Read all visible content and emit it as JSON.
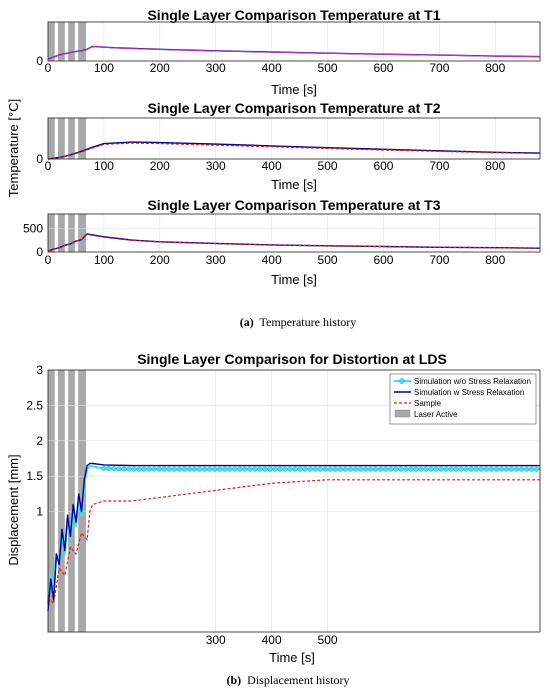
{
  "caption_a": {
    "label": "(a)",
    "text": "Temperature history"
  },
  "caption_b": {
    "label": "(b)",
    "text": "Displacement history"
  },
  "temperature_ylabel": "Temperature [°C]",
  "colors": {
    "laser": "#a9a9a9",
    "wo_relax": "#40e0f0",
    "w_relax": "#00008b",
    "sample": "#d32020",
    "magenta": "#c030c0"
  },
  "chart_data": [
    {
      "type": "line",
      "title": "Single Layer Comparison Temperature at T1",
      "xlabel": "Time [s]",
      "ylabel": "",
      "xlim": [
        0,
        880
      ],
      "ylim": [
        0,
        800
      ],
      "xticks": [
        0,
        100,
        200,
        300,
        400,
        500,
        600,
        700,
        800
      ],
      "yticks": [
        0
      ],
      "laser_active": [
        [
          0,
          12
        ],
        [
          18,
          30
        ],
        [
          36,
          48
        ],
        [
          54,
          68
        ]
      ],
      "series": [
        {
          "key": "w_relax",
          "x": [
            0,
            10,
            20,
            30,
            40,
            50,
            60,
            70,
            80,
            120,
            200,
            300,
            400,
            500,
            600,
            700,
            800,
            880
          ],
          "y": [
            40,
            80,
            120,
            150,
            170,
            195,
            210,
            240,
            300,
            270,
            240,
            210,
            185,
            160,
            140,
            120,
            100,
            90
          ]
        },
        {
          "key": "magenta",
          "x": [
            0,
            10,
            20,
            30,
            40,
            50,
            60,
            70,
            80,
            120,
            200,
            300,
            400,
            500,
            600,
            700,
            800,
            880
          ],
          "y": [
            40,
            78,
            118,
            148,
            168,
            192,
            208,
            236,
            295,
            266,
            236,
            206,
            182,
            158,
            138,
            118,
            98,
            88
          ]
        }
      ]
    },
    {
      "type": "line",
      "title": "Single Layer Comparison Temperature at T2",
      "xlabel": "Time [s]",
      "ylabel": "",
      "xlim": [
        0,
        880
      ],
      "ylim": [
        0,
        800
      ],
      "xticks": [
        0,
        100,
        200,
        300,
        400,
        500,
        600,
        700,
        800
      ],
      "yticks": [
        0
      ],
      "laser_active": [
        [
          0,
          12
        ],
        [
          18,
          30
        ],
        [
          36,
          48
        ],
        [
          54,
          68
        ]
      ],
      "series": [
        {
          "key": "w_relax",
          "x": [
            0,
            20,
            40,
            60,
            80,
            100,
            150,
            200,
            300,
            400,
            500,
            600,
            700,
            800,
            880
          ],
          "y": [
            0,
            30,
            80,
            150,
            230,
            300,
            330,
            320,
            290,
            255,
            220,
            190,
            160,
            130,
            115
          ]
        },
        {
          "key": "sample",
          "x": [
            0,
            20,
            40,
            60,
            80,
            100,
            150,
            200,
            300,
            400,
            500,
            600,
            700,
            800,
            880
          ],
          "y": [
            0,
            28,
            75,
            140,
            215,
            285,
            310,
            300,
            270,
            240,
            205,
            175,
            148,
            122,
            108
          ]
        }
      ]
    },
    {
      "type": "line",
      "title": "Single Layer Comparison Temperature at T3",
      "xlabel": "Time [s]",
      "ylabel": "",
      "xlim": [
        0,
        880
      ],
      "ylim": [
        0,
        800
      ],
      "xticks": [
        0,
        100,
        200,
        300,
        400,
        500,
        600,
        700,
        800
      ],
      "yticks": [
        0,
        500
      ],
      "laser_active": [
        [
          0,
          12
        ],
        [
          18,
          30
        ],
        [
          36,
          48
        ],
        [
          54,
          68
        ]
      ],
      "series": [
        {
          "key": "w_relax",
          "x": [
            0,
            10,
            20,
            30,
            40,
            50,
            60,
            70,
            80,
            100,
            150,
            200,
            300,
            400,
            500,
            600,
            700,
            800,
            880
          ],
          "y": [
            20,
            60,
            90,
            140,
            170,
            230,
            260,
            380,
            360,
            320,
            250,
            215,
            180,
            150,
            130,
            115,
            100,
            90,
            80
          ]
        },
        {
          "key": "sample",
          "x": [
            0,
            10,
            20,
            30,
            40,
            50,
            60,
            70,
            80,
            100,
            150,
            200,
            300,
            400,
            500,
            600,
            700,
            800,
            880
          ],
          "y": [
            20,
            55,
            85,
            135,
            165,
            225,
            255,
            370,
            350,
            310,
            245,
            210,
            176,
            147,
            127,
            112,
            98,
            88,
            78
          ]
        }
      ]
    },
    {
      "type": "line",
      "title": "Single Layer Comparison for Distortion at LDS",
      "xlabel": "Time [s]",
      "ylabel": "Displacement [mm]",
      "xlim": [
        0,
        880
      ],
      "ylim": [
        -0.7,
        3
      ],
      "xticks": [
        300,
        400,
        500
      ],
      "yticks": [
        1,
        1.5,
        2,
        2.5,
        3
      ],
      "laser_active": [
        [
          0,
          12
        ],
        [
          18,
          30
        ],
        [
          36,
          48
        ],
        [
          54,
          68
        ]
      ],
      "legend": {
        "placement": "top-right",
        "entries": [
          {
            "key": "wo_relax",
            "label": "Simulation w/o Stress Relaxation"
          },
          {
            "key": "w_relax",
            "label": "Simulation w Stress Relaxation"
          },
          {
            "key": "sample",
            "label": "Sample"
          },
          {
            "key": "laser",
            "label": "Laser Active"
          }
        ]
      },
      "series": [
        {
          "key": "wo_relax",
          "x": [
            0,
            5,
            10,
            15,
            20,
            25,
            30,
            35,
            40,
            45,
            50,
            55,
            60,
            65,
            70,
            75,
            80,
            90,
            100,
            150,
            200,
            300,
            400,
            500,
            600,
            700,
            800,
            880
          ],
          "y": [
            -0.3,
            0.1,
            -0.2,
            0.4,
            0.3,
            0.7,
            0.4,
            0.9,
            0.6,
            1.05,
            0.8,
            1.2,
            0.95,
            1.4,
            1.6,
            1.64,
            1.64,
            1.62,
            1.61,
            1.6,
            1.6,
            1.6,
            1.6,
            1.6,
            1.6,
            1.6,
            1.6,
            1.6
          ]
        },
        {
          "key": "w_relax",
          "x": [
            0,
            5,
            10,
            15,
            20,
            25,
            30,
            35,
            40,
            45,
            50,
            55,
            60,
            65,
            70,
            75,
            80,
            90,
            100,
            150,
            200,
            300,
            400,
            500,
            600,
            700,
            800,
            880
          ],
          "y": [
            -0.4,
            0.05,
            -0.25,
            0.4,
            0.25,
            0.75,
            0.45,
            0.95,
            0.65,
            1.1,
            0.85,
            1.25,
            1.0,
            1.45,
            1.65,
            1.68,
            1.68,
            1.67,
            1.66,
            1.65,
            1.65,
            1.65,
            1.65,
            1.65,
            1.65,
            1.65,
            1.65,
            1.65
          ]
        },
        {
          "key": "sample",
          "x": [
            0,
            10,
            20,
            30,
            40,
            50,
            60,
            70,
            75,
            80,
            100,
            150,
            200,
            300,
            400,
            500,
            600,
            700,
            800,
            880
          ],
          "y": [
            -0.2,
            -0.3,
            0.2,
            0.1,
            0.5,
            0.4,
            0.7,
            0.6,
            1.0,
            1.1,
            1.15,
            1.15,
            1.2,
            1.3,
            1.4,
            1.45,
            1.45,
            1.45,
            1.45,
            1.45
          ]
        }
      ]
    }
  ]
}
